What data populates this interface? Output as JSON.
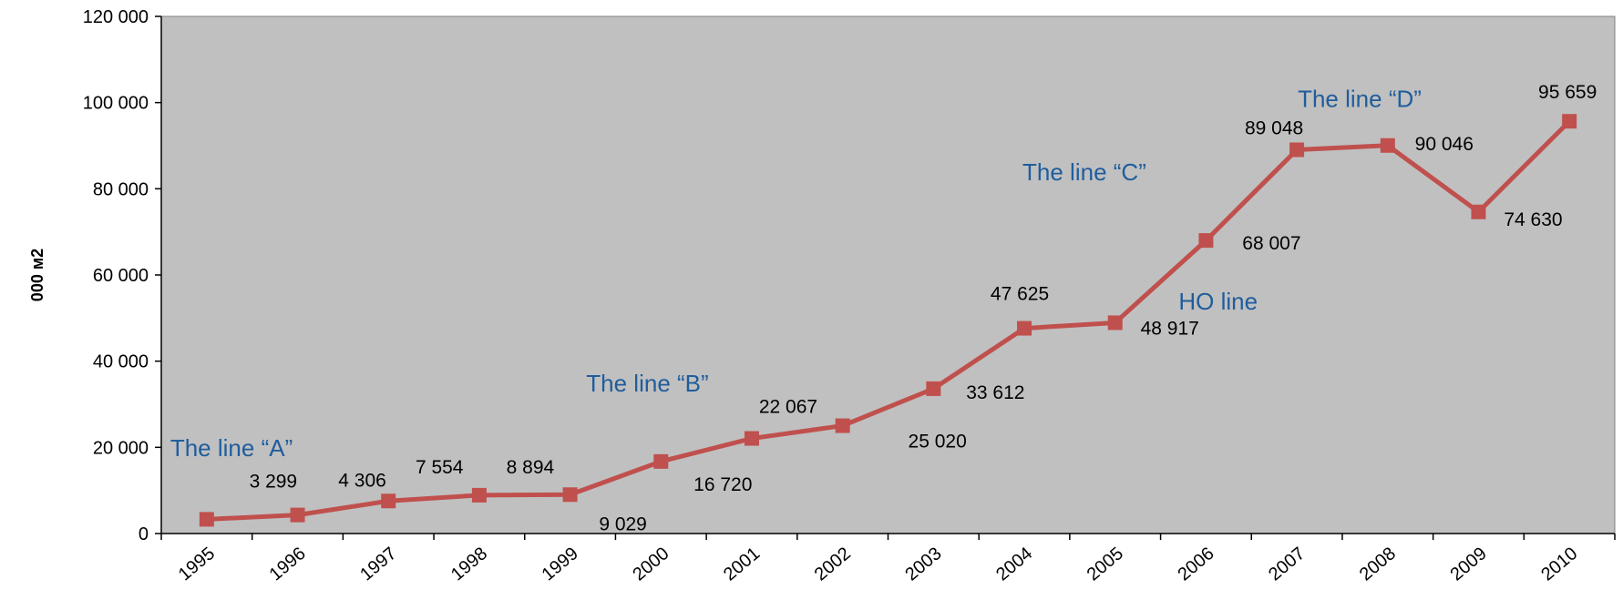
{
  "chart_data": {
    "type": "line",
    "title": "",
    "xlabel": "",
    "ylabel": "000 м2",
    "x": [
      "1995",
      "1996",
      "1997",
      "1998",
      "1999",
      "2000",
      "2001",
      "2002",
      "2003",
      "2004",
      "2005",
      "2006",
      "2007",
      "2008",
      "2009",
      "2010"
    ],
    "series": [
      {
        "values": [
          3299,
          4306,
          7554,
          8894,
          9029,
          16720,
          22067,
          25020,
          33612,
          47625,
          48917,
          68007,
          89048,
          90046,
          74630,
          95659
        ],
        "data_labels": [
          "3 299",
          "4 306",
          "7 554",
          "8 894",
          "9 029",
          "16 720",
          "22 067",
          "25 020",
          "33 612",
          "47 625",
          "48 917",
          "68 007",
          "89 048",
          "90 046",
          "74 630",
          "95 659"
        ]
      }
    ],
    "ylim": [
      0,
      120000
    ],
    "yticks": [
      0,
      20000,
      40000,
      60000,
      80000,
      100000,
      120000
    ],
    "ytick_labels": [
      "0",
      "20 000",
      "40 000",
      "60 000",
      "80 000",
      "100 000",
      "120 000"
    ],
    "grid": false,
    "legend": "none",
    "annotations": [
      {
        "text": "The line “A”",
        "x": "1995",
        "y": 18000
      },
      {
        "text": "The line “B”",
        "x": "2000",
        "y": 33000
      },
      {
        "text": "The line “C”",
        "x": "2004",
        "y": 82000
      },
      {
        "text": "HO line",
        "x": "2006",
        "y": 52000
      },
      {
        "text": "The line “D”",
        "x": "2007",
        "y": 99000
      }
    ],
    "colors": {
      "plot_background": "#c0c0c0",
      "line": "#c0504d",
      "annotation_text": "#1f5d9c",
      "axis": "#000000"
    }
  }
}
